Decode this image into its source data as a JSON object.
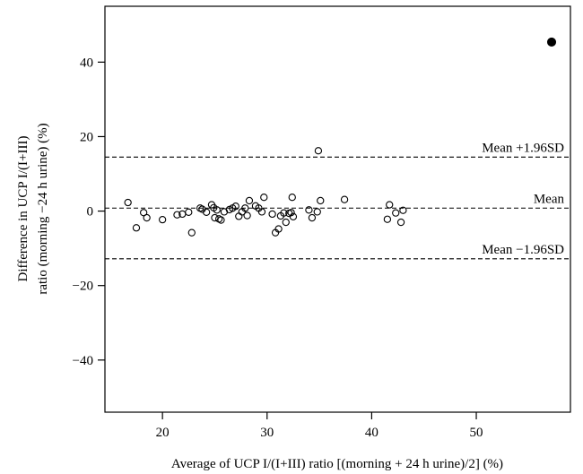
{
  "chart_data": {
    "type": "scatter",
    "title": "",
    "xlabel": "Average of UCP I/(I+III) ratio [(morning + 24 h urine)/2] (%)",
    "ylabel_line1": "Difference in UCP I/(I+III)",
    "ylabel_line2": "ratio (morning −24 h urine) (%)",
    "xlim": [
      14.5,
      59
    ],
    "ylim": [
      -54,
      55
    ],
    "x_ticks": [
      20,
      30,
      40,
      50
    ],
    "y_ticks": [
      -40,
      -20,
      0,
      20,
      40
    ],
    "y_tick_labels": [
      "−40",
      "−20",
      "0",
      "20",
      "40"
    ],
    "reference_lines": [
      {
        "label": "Mean +1.96SD",
        "y": 14.5
      },
      {
        "label": "Mean",
        "y": 0.8
      },
      {
        "label": "Mean −1.96SD",
        "y": -12.8
      }
    ],
    "series": [
      {
        "marker": "open-circle",
        "points": [
          [
            16.7,
            2.3
          ],
          [
            17.5,
            -4.5
          ],
          [
            18.2,
            -0.4
          ],
          [
            18.5,
            -1.8
          ],
          [
            20.0,
            -2.3
          ],
          [
            21.4,
            -1.0
          ],
          [
            21.9,
            -0.8
          ],
          [
            22.5,
            -0.3
          ],
          [
            22.8,
            -5.8
          ],
          [
            23.6,
            0.8
          ],
          [
            23.8,
            0.5
          ],
          [
            24.2,
            -0.3
          ],
          [
            24.7,
            1.7
          ],
          [
            24.9,
            0.9
          ],
          [
            25.0,
            -1.8
          ],
          [
            25.2,
            0.3
          ],
          [
            25.4,
            -2.1
          ],
          [
            25.6,
            -2.4
          ],
          [
            25.9,
            -0.2
          ],
          [
            26.4,
            0.4
          ],
          [
            26.7,
            0.8
          ],
          [
            27.0,
            1.3
          ],
          [
            27.3,
            -1.4
          ],
          [
            27.6,
            -0.2
          ],
          [
            27.9,
            0.8
          ],
          [
            28.1,
            -1.2
          ],
          [
            28.3,
            2.8
          ],
          [
            28.9,
            1.4
          ],
          [
            29.2,
            0.8
          ],
          [
            29.5,
            -0.2
          ],
          [
            29.7,
            3.7
          ],
          [
            30.5,
            -0.8
          ],
          [
            30.8,
            -5.8
          ],
          [
            31.1,
            -4.8
          ],
          [
            31.3,
            -1.3
          ],
          [
            31.6,
            -0.5
          ],
          [
            31.8,
            -3.0
          ],
          [
            32.1,
            -0.6
          ],
          [
            32.3,
            -0.4
          ],
          [
            32.4,
            3.7
          ],
          [
            32.5,
            -1.5
          ],
          [
            34.0,
            0.3
          ],
          [
            34.3,
            -1.8
          ],
          [
            34.8,
            -0.2
          ],
          [
            34.9,
            16.2
          ],
          [
            35.1,
            2.8
          ],
          [
            37.4,
            3.1
          ],
          [
            41.5,
            -2.2
          ],
          [
            41.7,
            1.7
          ],
          [
            42.3,
            -0.5
          ],
          [
            42.8,
            -3.0
          ],
          [
            43.0,
            0.2
          ]
        ]
      },
      {
        "marker": "filled-circle",
        "points": [
          [
            57.2,
            45.4
          ]
        ]
      }
    ]
  }
}
